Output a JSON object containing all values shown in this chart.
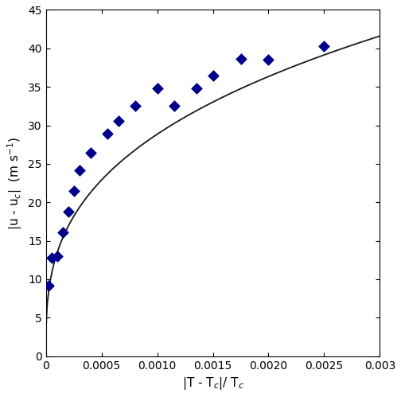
{
  "scatter_x": [
    2.5e-05,
    5e-05,
    0.0001,
    0.00015,
    0.0002,
    0.00025,
    0.0003,
    0.0004,
    0.00055,
    0.00065,
    0.0008,
    0.001,
    0.00115,
    0.00135,
    0.0015,
    0.00175,
    0.002,
    0.0025
  ],
  "scatter_y": [
    9.2,
    12.8,
    13.0,
    16.1,
    18.8,
    21.5,
    24.2,
    26.4,
    28.9,
    30.6,
    32.5,
    34.8,
    32.5,
    34.8,
    36.5,
    38.6,
    38.5,
    40.3
  ],
  "B1": 288.46,
  "exponent": 0.3333333,
  "xlim": [
    0,
    0.003
  ],
  "ylim": [
    0,
    45
  ],
  "xlabel": "|T - T$_c$|/ T$_c$",
  "ylabel": "|u - u$_c$|  (m s$^{-1}$)",
  "marker_color": "#00008B",
  "line_color": "#1a1a1a",
  "marker": "D",
  "marker_size": 7,
  "xticks": [
    0,
    0.0005,
    0.001,
    0.0015,
    0.002,
    0.0025,
    0.003
  ],
  "yticks": [
    0,
    5,
    10,
    15,
    20,
    25,
    30,
    35,
    40,
    45
  ],
  "figsize": [
    5.04,
    4.99
  ],
  "dpi": 100
}
